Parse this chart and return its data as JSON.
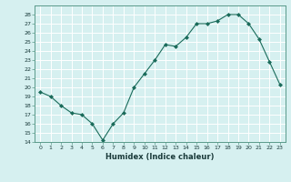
{
  "x": [
    0,
    1,
    2,
    3,
    4,
    5,
    6,
    7,
    8,
    9,
    10,
    11,
    12,
    13,
    14,
    15,
    16,
    17,
    18,
    19,
    20,
    21,
    22,
    23
  ],
  "y": [
    19.5,
    19.0,
    18.0,
    17.2,
    17.0,
    16.0,
    14.2,
    16.0,
    17.2,
    20.0,
    21.5,
    23.0,
    24.7,
    24.5,
    25.5,
    27.0,
    27.0,
    27.3,
    28.0,
    28.0,
    27.0,
    25.3,
    22.8,
    20.3
  ],
  "line_color": "#1a6b5a",
  "marker": "D",
  "marker_size": 2,
  "bg_color": "#d6f0f0",
  "grid_color": "#ffffff",
  "xlabel": "Humidex (Indice chaleur)",
  "xlim": [
    -0.5,
    23.5
  ],
  "ylim": [
    14,
    29
  ],
  "yticks": [
    14,
    15,
    16,
    17,
    18,
    19,
    20,
    21,
    22,
    23,
    24,
    25,
    26,
    27,
    28
  ],
  "xticks": [
    0,
    1,
    2,
    3,
    4,
    5,
    6,
    7,
    8,
    9,
    10,
    11,
    12,
    13,
    14,
    15,
    16,
    17,
    18,
    19,
    20,
    21,
    22,
    23
  ]
}
